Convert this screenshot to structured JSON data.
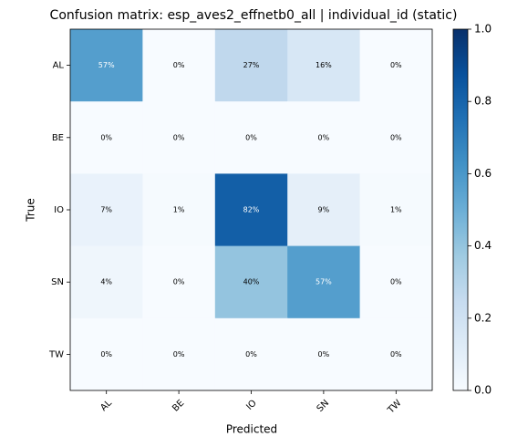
{
  "chart_data": {
    "type": "heatmap",
    "title": "Confusion matrix: esp_aves2_effnetb0_all | individual_id (static)",
    "x_label": "Predicted",
    "y_label": "True",
    "x_categories": [
      "AL",
      "BE",
      "IO",
      "SN",
      "TW"
    ],
    "y_categories": [
      "AL",
      "BE",
      "IO",
      "SN",
      "TW"
    ],
    "values": [
      [
        0.57,
        0,
        0.27,
        0.16,
        0
      ],
      [
        0,
        0,
        0,
        0,
        0
      ],
      [
        0.07,
        0.01,
        0.82,
        0.09,
        0.01
      ],
      [
        0.04,
        0,
        0.4,
        0.57,
        0
      ],
      [
        0,
        0,
        0,
        0,
        0
      ]
    ],
    "value_labels": [
      [
        "57%",
        "0%",
        "27%",
        "16%",
        "0%"
      ],
      [
        "0%",
        "0%",
        "0%",
        "0%",
        "0%"
      ],
      [
        "7%",
        "1%",
        "82%",
        "9%",
        "1%"
      ],
      [
        "4%",
        "0%",
        "40%",
        "57%",
        "0%"
      ],
      [
        "0%",
        "0%",
        "0%",
        "0%",
        "0%"
      ]
    ],
    "colormap": "Blues",
    "clim": [
      0,
      1
    ],
    "cticks": [
      {
        "value": 0,
        "label": "0.0"
      },
      {
        "value": 0.2,
        "label": "0.2"
      },
      {
        "value": 0.4,
        "label": "0.4"
      },
      {
        "value": 0.6,
        "label": "0.6"
      },
      {
        "value": 0.8,
        "label": "0.8"
      },
      {
        "value": 1,
        "label": "1.0"
      }
    ]
  }
}
